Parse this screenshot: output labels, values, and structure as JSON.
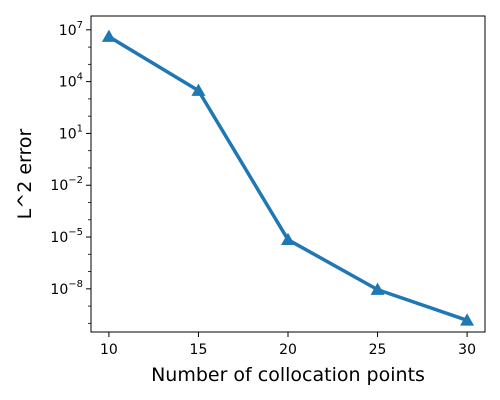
{
  "chart_data": {
    "type": "line",
    "title": "",
    "xlabel": "Number of collocation points",
    "ylabel": "L^2 error",
    "yscale": "log",
    "x": [
      10,
      15,
      20,
      25,
      30
    ],
    "series": [
      {
        "values": [
          4000000,
          3000,
          7e-06,
          9e-09,
          1.5e-10
        ],
        "color": "#1f77b4",
        "marker": "triangle-up"
      }
    ],
    "xlim": [
      9,
      31
    ],
    "ylim_exponent": [
      -10.5,
      7.8
    ],
    "xticks": [
      10,
      15,
      20,
      25,
      30
    ],
    "xtick_labels": [
      "10",
      "15",
      "20",
      "25",
      "30"
    ],
    "yticks_exponent": [
      7,
      4,
      1,
      -2,
      -5,
      -8
    ],
    "ytick_labels": [
      {
        "base": "10",
        "exp": "7"
      },
      {
        "base": "10",
        "exp": "4"
      },
      {
        "base": "10",
        "exp": "1"
      },
      {
        "base": "10",
        "exp": "−2"
      },
      {
        "base": "10",
        "exp": "−5"
      },
      {
        "base": "10",
        "exp": "−8"
      }
    ],
    "grid": false,
    "legend": "none"
  }
}
